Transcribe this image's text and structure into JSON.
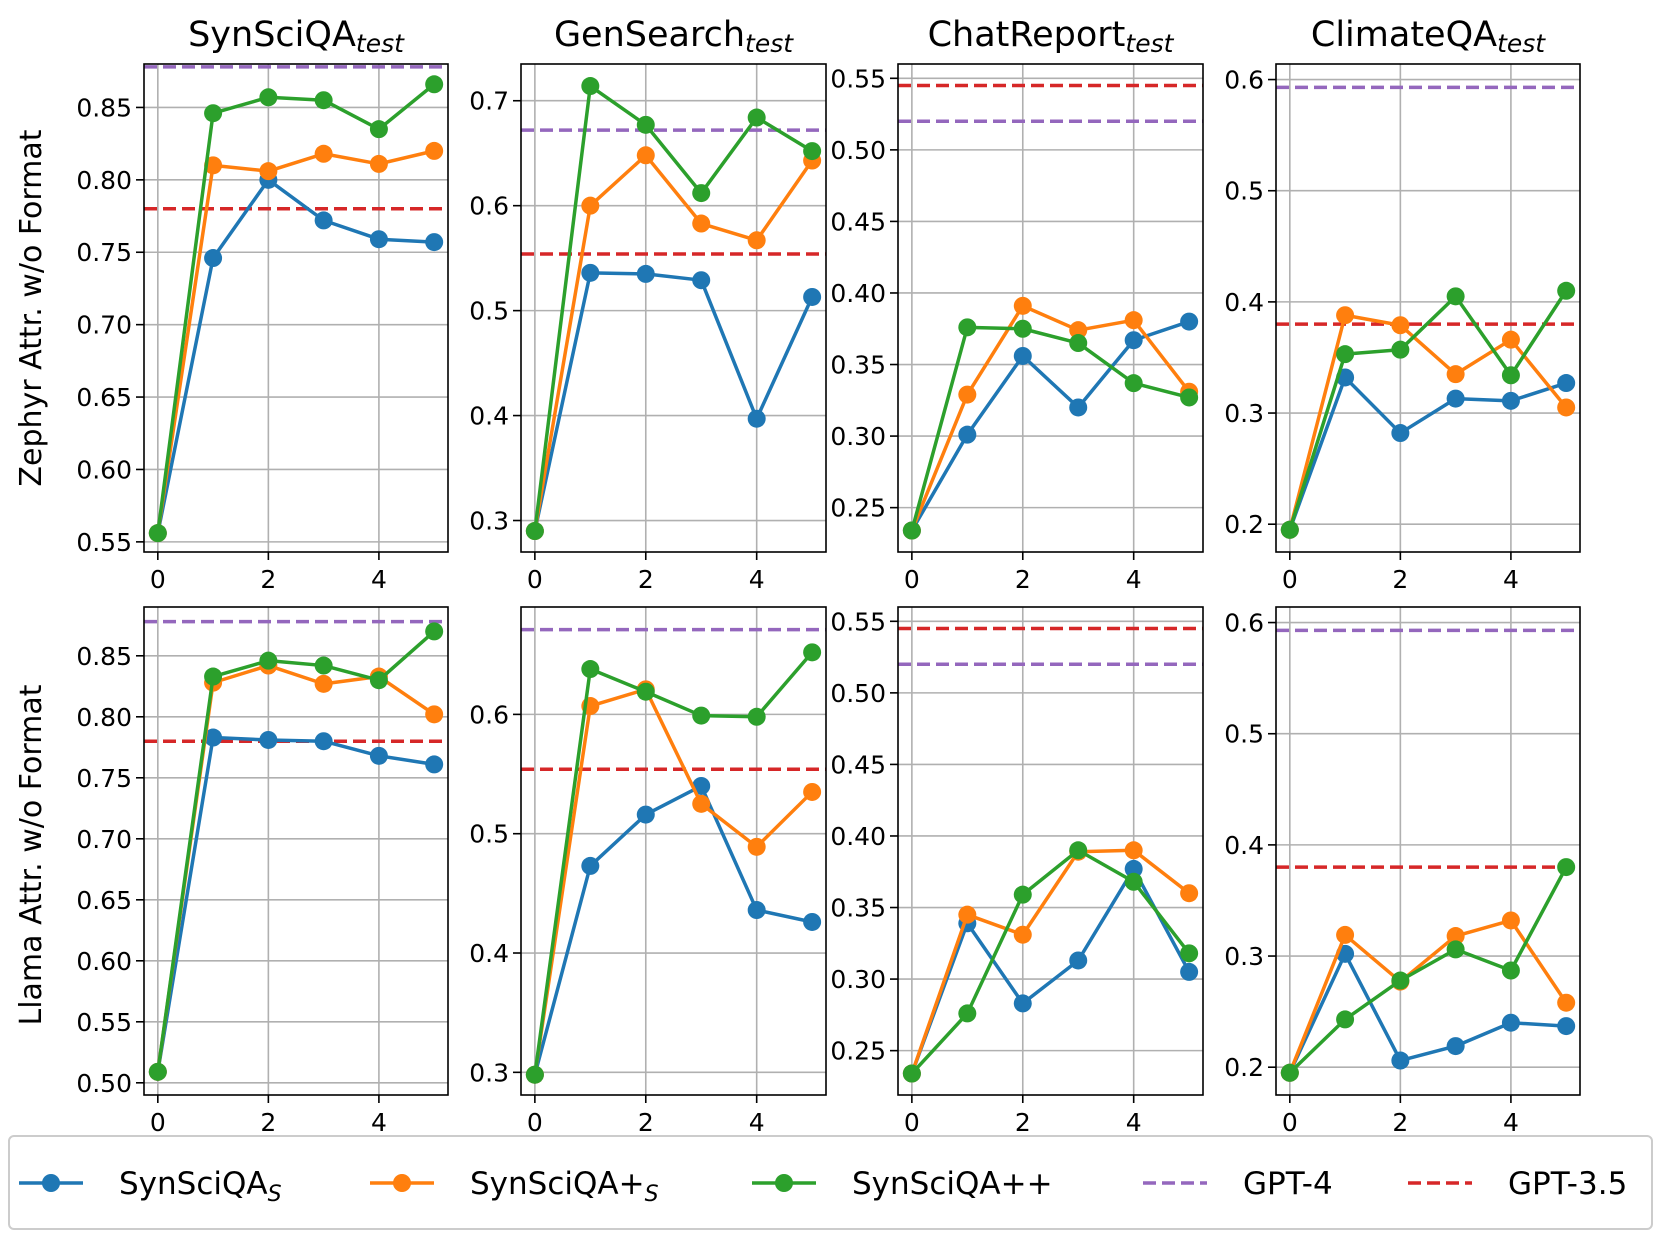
{
  "colors": {
    "syn_s": "#1f77b4",
    "syn_plus_s": "#ff7f0e",
    "syn_pp": "#2ca02c",
    "gpt4": "#9467bd",
    "gpt35": "#d62728",
    "grid": "#b0b0b0",
    "legend_border": "#cccccc"
  },
  "row_labels": [
    "Zephyr Attr. w/o Format",
    "Llama Attr. w/o Format"
  ],
  "legend": [
    {
      "base": "SynSciQA",
      "sub": "S",
      "color_key": "syn_s",
      "style": "line-marker"
    },
    {
      "base": "SynSciQA+",
      "sub": "S",
      "color_key": "syn_plus_s",
      "style": "line-marker"
    },
    {
      "base": "SynSciQA++",
      "sub": "",
      "color_key": "syn_pp",
      "style": "line-marker"
    },
    {
      "base": "GPT-4",
      "sub": "",
      "color_key": "gpt4",
      "style": "dashed"
    },
    {
      "base": "GPT-3.5",
      "sub": "",
      "color_key": "gpt35",
      "style": "dashed"
    }
  ],
  "chart_data": [
    {
      "type": "line",
      "row": 0,
      "col": 0,
      "title": "SynSciQA",
      "title_sub": "test",
      "ylabel": "Zephyr Attr. w/o Format",
      "x": [
        0,
        1,
        2,
        3,
        4,
        5
      ],
      "xlim": [
        -0.25,
        5.25
      ],
      "xticks": [
        0,
        2,
        4
      ],
      "ylim": [
        0.543,
        0.88
      ],
      "yticks": [
        0.55,
        0.6,
        0.65,
        0.7,
        0.75,
        0.8,
        0.85
      ],
      "ytick_labels": [
        "0.55",
        "0.60",
        "0.65",
        "0.70",
        "0.75",
        "0.80",
        "0.85"
      ],
      "series": [
        {
          "name": "SynSciQA_S",
          "color_key": "syn_s",
          "values": [
            0.556,
            0.746,
            0.8,
            0.772,
            0.759,
            0.757
          ]
        },
        {
          "name": "SynSciQA+_S",
          "color_key": "syn_plus_s",
          "values": [
            0.556,
            0.81,
            0.806,
            0.818,
            0.811,
            0.82
          ]
        },
        {
          "name": "SynSciQA++",
          "color_key": "syn_pp",
          "values": [
            0.556,
            0.846,
            0.857,
            0.855,
            0.835,
            0.866
          ]
        }
      ],
      "hlines": [
        {
          "name": "GPT-4",
          "color_key": "gpt4",
          "value": 0.878
        },
        {
          "name": "GPT-3.5",
          "color_key": "gpt35",
          "value": 0.78
        }
      ],
      "grid": true
    },
    {
      "type": "line",
      "row": 0,
      "col": 1,
      "title": "GenSearch",
      "title_sub": "test",
      "x": [
        0,
        1,
        2,
        3,
        4,
        5
      ],
      "xlim": [
        -0.25,
        5.25
      ],
      "xticks": [
        0,
        2,
        4
      ],
      "ylim": [
        0.27,
        0.735
      ],
      "yticks": [
        0.3,
        0.4,
        0.5,
        0.6,
        0.7
      ],
      "ytick_labels": [
        "0.3",
        "0.4",
        "0.5",
        "0.6",
        "0.7"
      ],
      "series": [
        {
          "name": "SynSciQA_S",
          "color_key": "syn_s",
          "values": [
            0.29,
            0.536,
            0.535,
            0.529,
            0.397,
            0.513
          ]
        },
        {
          "name": "SynSciQA+_S",
          "color_key": "syn_plus_s",
          "values": [
            0.29,
            0.6,
            0.648,
            0.583,
            0.567,
            0.643
          ]
        },
        {
          "name": "SynSciQA++",
          "color_key": "syn_pp",
          "values": [
            0.29,
            0.714,
            0.677,
            0.612,
            0.684,
            0.652
          ]
        }
      ],
      "hlines": [
        {
          "name": "GPT-4",
          "color_key": "gpt4",
          "value": 0.672
        },
        {
          "name": "GPT-3.5",
          "color_key": "gpt35",
          "value": 0.554
        }
      ],
      "grid": true
    },
    {
      "type": "line",
      "row": 0,
      "col": 2,
      "title": "ChatReport",
      "title_sub": "test",
      "x": [
        0,
        1,
        2,
        3,
        4,
        5
      ],
      "xlim": [
        -0.25,
        5.25
      ],
      "xticks": [
        0,
        2,
        4
      ],
      "ylim": [
        0.219,
        0.56
      ],
      "yticks": [
        0.25,
        0.3,
        0.35,
        0.4,
        0.45,
        0.5,
        0.55
      ],
      "ytick_labels": [
        "0.25",
        "0.30",
        "0.35",
        "0.40",
        "0.45",
        "0.50",
        "0.55"
      ],
      "series": [
        {
          "name": "SynSciQA_S",
          "color_key": "syn_s",
          "values": [
            0.234,
            0.301,
            0.356,
            0.32,
            0.367,
            0.38
          ]
        },
        {
          "name": "SynSciQA+_S",
          "color_key": "syn_plus_s",
          "values": [
            0.234,
            0.329,
            0.391,
            0.374,
            0.381,
            0.331
          ]
        },
        {
          "name": "SynSciQA++",
          "color_key": "syn_pp",
          "values": [
            0.234,
            0.376,
            0.375,
            0.365,
            0.337,
            0.327
          ]
        }
      ],
      "hlines": [
        {
          "name": "GPT-4",
          "color_key": "gpt4",
          "value": 0.52
        },
        {
          "name": "GPT-3.5",
          "color_key": "gpt35",
          "value": 0.545
        }
      ],
      "grid": true
    },
    {
      "type": "line",
      "row": 0,
      "col": 3,
      "title": "ClimateQA",
      "title_sub": "test",
      "x": [
        0,
        1,
        2,
        3,
        4,
        5
      ],
      "xlim": [
        -0.25,
        5.25
      ],
      "xticks": [
        0,
        2,
        4
      ],
      "ylim": [
        0.175,
        0.614
      ],
      "yticks": [
        0.2,
        0.3,
        0.4,
        0.5,
        0.6
      ],
      "ytick_labels": [
        "0.2",
        "0.3",
        "0.4",
        "0.5",
        "0.6"
      ],
      "series": [
        {
          "name": "SynSciQA_S",
          "color_key": "syn_s",
          "values": [
            0.195,
            0.332,
            0.282,
            0.313,
            0.311,
            0.327
          ]
        },
        {
          "name": "SynSciQA+_S",
          "color_key": "syn_plus_s",
          "values": [
            0.195,
            0.388,
            0.379,
            0.335,
            0.366,
            0.305
          ]
        },
        {
          "name": "SynSciQA++",
          "color_key": "syn_pp",
          "values": [
            0.195,
            0.353,
            0.357,
            0.405,
            0.334,
            0.41
          ]
        }
      ],
      "hlines": [
        {
          "name": "GPT-4",
          "color_key": "gpt4",
          "value": 0.593
        },
        {
          "name": "GPT-3.5",
          "color_key": "gpt35",
          "value": 0.38
        }
      ],
      "grid": true
    },
    {
      "type": "line",
      "row": 1,
      "col": 0,
      "ylabel": "Llama Attr. w/o Format",
      "x": [
        0,
        1,
        2,
        3,
        4,
        5
      ],
      "xlim": [
        -0.25,
        5.25
      ],
      "xticks": [
        0,
        2,
        4
      ],
      "ylim": [
        0.49,
        0.89
      ],
      "yticks": [
        0.5,
        0.55,
        0.6,
        0.65,
        0.7,
        0.75,
        0.8,
        0.85
      ],
      "ytick_labels": [
        "0.50",
        "0.55",
        "0.60",
        "0.65",
        "0.70",
        "0.75",
        "0.80",
        "0.85"
      ],
      "series": [
        {
          "name": "SynSciQA_S",
          "color_key": "syn_s",
          "values": [
            0.509,
            0.783,
            0.781,
            0.78,
            0.768,
            0.761
          ]
        },
        {
          "name": "SynSciQA+_S",
          "color_key": "syn_plus_s",
          "values": [
            0.509,
            0.828,
            0.842,
            0.827,
            0.833,
            0.802
          ]
        },
        {
          "name": "SynSciQA++",
          "color_key": "syn_pp",
          "values": [
            0.509,
            0.833,
            0.846,
            0.842,
            0.83,
            0.87
          ]
        }
      ],
      "hlines": [
        {
          "name": "GPT-4",
          "color_key": "gpt4",
          "value": 0.878
        },
        {
          "name": "GPT-3.5",
          "color_key": "gpt35",
          "value": 0.78
        }
      ],
      "grid": true
    },
    {
      "type": "line",
      "row": 1,
      "col": 1,
      "x": [
        0,
        1,
        2,
        3,
        4,
        5
      ],
      "xlim": [
        -0.25,
        5.25
      ],
      "xticks": [
        0,
        2,
        4
      ],
      "ylim": [
        0.281,
        0.69
      ],
      "yticks": [
        0.3,
        0.4,
        0.5,
        0.6
      ],
      "ytick_labels": [
        "0.3",
        "0.4",
        "0.5",
        "0.6"
      ],
      "series": [
        {
          "name": "SynSciQA_S",
          "color_key": "syn_s",
          "values": [
            0.298,
            0.473,
            0.516,
            0.54,
            0.436,
            0.426
          ]
        },
        {
          "name": "SynSciQA+_S",
          "color_key": "syn_plus_s",
          "values": [
            0.298,
            0.607,
            0.621,
            0.525,
            0.489,
            0.535
          ]
        },
        {
          "name": "SynSciQA++",
          "color_key": "syn_pp",
          "values": [
            0.298,
            0.638,
            0.619,
            0.599,
            0.598,
            0.652
          ]
        }
      ],
      "hlines": [
        {
          "name": "GPT-4",
          "color_key": "gpt4",
          "value": 0.671
        },
        {
          "name": "GPT-3.5",
          "color_key": "gpt35",
          "value": 0.554
        }
      ],
      "grid": true
    },
    {
      "type": "line",
      "row": 1,
      "col": 2,
      "x": [
        0,
        1,
        2,
        3,
        4,
        5
      ],
      "xlim": [
        -0.25,
        5.25
      ],
      "xticks": [
        0,
        2,
        4
      ],
      "ylim": [
        0.219,
        0.56
      ],
      "yticks": [
        0.25,
        0.3,
        0.35,
        0.4,
        0.45,
        0.5,
        0.55
      ],
      "ytick_labels": [
        "0.25",
        "0.30",
        "0.35",
        "0.40",
        "0.45",
        "0.50",
        "0.55"
      ],
      "series": [
        {
          "name": "SynSciQA_S",
          "color_key": "syn_s",
          "values": [
            0.234,
            0.339,
            0.283,
            0.313,
            0.377,
            0.305
          ]
        },
        {
          "name": "SynSciQA+_S",
          "color_key": "syn_plus_s",
          "values": [
            0.234,
            0.345,
            0.331,
            0.389,
            0.39,
            0.36
          ]
        },
        {
          "name": "SynSciQA++",
          "color_key": "syn_pp",
          "values": [
            0.234,
            0.276,
            0.359,
            0.39,
            0.368,
            0.318
          ]
        }
      ],
      "hlines": [
        {
          "name": "GPT-4",
          "color_key": "gpt4",
          "value": 0.52
        },
        {
          "name": "GPT-3.5",
          "color_key": "gpt35",
          "value": 0.545
        }
      ],
      "grid": true
    },
    {
      "type": "line",
      "row": 1,
      "col": 3,
      "x": [
        0,
        1,
        2,
        3,
        4,
        5
      ],
      "xlim": [
        -0.25,
        5.25
      ],
      "xticks": [
        0,
        2,
        4
      ],
      "ylim": [
        0.175,
        0.614
      ],
      "yticks": [
        0.2,
        0.3,
        0.4,
        0.5,
        0.6
      ],
      "ytick_labels": [
        "0.2",
        "0.3",
        "0.4",
        "0.5",
        "0.6"
      ],
      "series": [
        {
          "name": "SynSciQA_S",
          "color_key": "syn_s",
          "values": [
            0.195,
            0.302,
            0.206,
            0.219,
            0.24,
            0.237
          ]
        },
        {
          "name": "SynSciQA+_S",
          "color_key": "syn_plus_s",
          "values": [
            0.195,
            0.319,
            0.277,
            0.318,
            0.332,
            0.258
          ]
        },
        {
          "name": "SynSciQA++",
          "color_key": "syn_pp",
          "values": [
            0.195,
            0.243,
            0.278,
            0.306,
            0.287,
            0.38
          ]
        }
      ],
      "hlines": [
        {
          "name": "GPT-4",
          "color_key": "gpt4",
          "value": 0.593
        },
        {
          "name": "GPT-3.5",
          "color_key": "gpt35",
          "value": 0.38
        }
      ],
      "grid": true
    }
  ]
}
